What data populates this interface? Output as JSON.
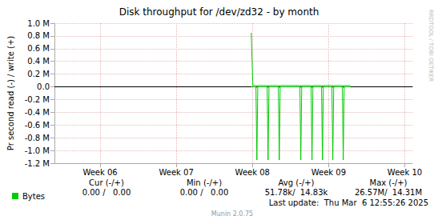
{
  "chart_data": {
    "type": "line",
    "title": "Disk throughput for /dev/zd32 - by month",
    "y_label": "Pr second read (-) / write (+)",
    "x": [
      7.984,
      8.005,
      8.046,
      8.058,
      8.07,
      8.193,
      8.205,
      8.217,
      8.34,
      8.352,
      8.364,
      8.623,
      8.635,
      8.647,
      8.77,
      8.782,
      8.794,
      8.907,
      8.919,
      8.931,
      9.043,
      9.055,
      9.067,
      9.18,
      9.192,
      9.204,
      9.286
    ],
    "series": [
      {
        "name": "Bytes",
        "color": "#00cc00",
        "values": [
          850000,
          20000,
          20000,
          20000,
          20000,
          20000,
          20000,
          20000,
          20000,
          20000,
          20000,
          20000,
          20000,
          20000,
          20000,
          20000,
          20000,
          20000,
          20000,
          20000,
          20000,
          20000,
          20000,
          20000,
          20000,
          20000,
          20000
        ],
        "negative_values": [
          0,
          0,
          0,
          -1150000,
          0,
          0,
          -1150000,
          0,
          0,
          -1150000,
          0,
          0,
          -1150000,
          0,
          0,
          -1150000,
          0,
          0,
          -1150000,
          0,
          0,
          -1150000,
          0,
          0,
          -1150000,
          0,
          0
        ]
      }
    ],
    "xlim": [
      5.4,
      10.1
    ],
    "xticks": [
      {
        "value": 6,
        "label": "Week 06"
      },
      {
        "value": 7,
        "label": "Week 07"
      },
      {
        "value": 8,
        "label": "Week 08"
      },
      {
        "value": 9,
        "label": "Week 09"
      },
      {
        "value": 10,
        "label": "Week 10"
      }
    ],
    "ylim": [
      -1200000,
      1000000
    ],
    "yticks": [
      {
        "value": -1200000,
        "label": "-1.2 M"
      },
      {
        "value": -1000000,
        "label": "-1.0 M"
      },
      {
        "value": -800000,
        "label": "-0.8 M"
      },
      {
        "value": -600000,
        "label": "-0.6 M"
      },
      {
        "value": -400000,
        "label": "-0.4 M"
      },
      {
        "value": -200000,
        "label": "-0.2 M"
      },
      {
        "value": 0,
        "label": "0.0"
      },
      {
        "value": 200000,
        "label": "0.2 M"
      },
      {
        "value": 400000,
        "label": "0.4 M"
      },
      {
        "value": 600000,
        "label": "0.6 M"
      },
      {
        "value": 800000,
        "label": "0.8 M"
      },
      {
        "value": 1000000,
        "label": "1.0 M"
      }
    ],
    "grid": true,
    "legend": "lower left",
    "stats": {
      "columns": [
        "Cur (-/+)",
        "Min (-/+)",
        "Avg (-/+)",
        "Max (-/+)"
      ],
      "values": [
        "0.00 /   0.00",
        "0.00 /   0.00",
        "51.78k/  14.83k",
        "26.57M/  14.31M"
      ]
    },
    "last_update": "Last update:  Thu Mar  6 12:55:26 2025",
    "footer": "Munin 2.0.75",
    "watermark": "RRDTOOL / TOBI OETIKER"
  }
}
